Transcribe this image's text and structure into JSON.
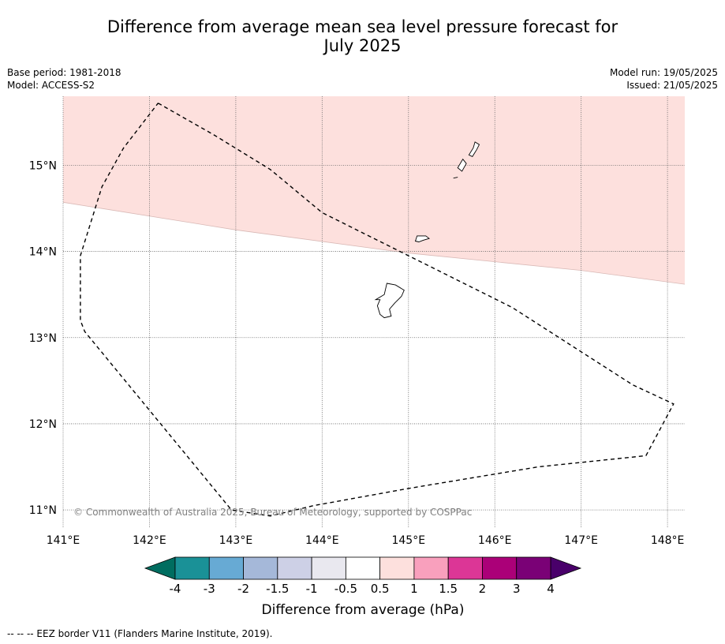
{
  "title": {
    "line1": "Difference from average mean sea level pressure forecast for",
    "line2": "July 2025"
  },
  "meta": {
    "base_period": "Base period: 1981-2018",
    "model": "Model: ACCESS-S2",
    "model_run": "Model run: 19/05/2025",
    "issued": "Issued: 21/05/2025"
  },
  "map": {
    "lon_range": [
      141.0,
      148.2
    ],
    "lat_range": [
      10.8,
      15.8
    ],
    "lon_ticks": [
      {
        "v": 141,
        "label": "141°E"
      },
      {
        "v": 142,
        "label": "142°E"
      },
      {
        "v": 143,
        "label": "143°E"
      },
      {
        "v": 144,
        "label": "144°E"
      },
      {
        "v": 145,
        "label": "145°E"
      },
      {
        "v": 146,
        "label": "146°E"
      },
      {
        "v": 147,
        "label": "147°E"
      },
      {
        "v": 148,
        "label": "148°E"
      }
    ],
    "lat_ticks": [
      {
        "v": 15,
        "label": "15°N"
      },
      {
        "v": 14,
        "label": "14°N"
      },
      {
        "v": 13,
        "label": "13°N"
      },
      {
        "v": 12,
        "label": "12°N"
      },
      {
        "v": 11,
        "label": "11°N"
      }
    ],
    "shaded_region": {
      "category": "0.5 to 1",
      "color": "#fde0dd",
      "lower_boundary": [
        [
          141.0,
          14.57
        ],
        [
          143.0,
          14.25
        ],
        [
          145.0,
          13.98
        ],
        [
          147.0,
          13.78
        ],
        [
          148.2,
          13.62
        ]
      ]
    },
    "eez_border": [
      [
        142.1,
        15.72
      ],
      [
        142.75,
        15.35
      ],
      [
        143.4,
        14.95
      ],
      [
        144.0,
        14.45
      ],
      [
        144.8,
        14.05
      ],
      [
        145.5,
        13.7
      ],
      [
        146.2,
        13.35
      ],
      [
        146.9,
        12.9
      ],
      [
        147.6,
        12.45
      ],
      [
        148.07,
        12.23
      ],
      [
        147.75,
        11.63
      ],
      [
        146.5,
        11.5
      ],
      [
        145.0,
        11.25
      ],
      [
        143.9,
        11.05
      ],
      [
        143.4,
        10.93
      ],
      [
        142.95,
        11.0
      ],
      [
        141.25,
        13.07
      ],
      [
        141.2,
        13.2
      ],
      [
        141.2,
        13.95
      ],
      [
        141.45,
        14.75
      ],
      [
        141.7,
        15.2
      ],
      [
        142.1,
        15.72
      ]
    ],
    "islands": [
      {
        "name": "Guam",
        "coords": [
          [
            144.75,
            13.63
          ],
          [
            144.85,
            13.61
          ],
          [
            144.95,
            13.55
          ],
          [
            144.92,
            13.48
          ],
          [
            144.84,
            13.4
          ],
          [
            144.78,
            13.33
          ],
          [
            144.8,
            13.25
          ],
          [
            144.72,
            13.23
          ],
          [
            144.67,
            13.27
          ],
          [
            144.64,
            13.37
          ],
          [
            144.67,
            13.44
          ],
          [
            144.62,
            13.44
          ],
          [
            144.72,
            13.5
          ],
          [
            144.75,
            13.63
          ]
        ]
      },
      {
        "name": "Rota",
        "coords": [
          [
            145.1,
            14.18
          ],
          [
            145.2,
            14.18
          ],
          [
            145.24,
            14.15
          ],
          [
            145.17,
            14.13
          ],
          [
            145.12,
            14.11
          ],
          [
            145.08,
            14.12
          ],
          [
            145.1,
            14.18
          ]
        ]
      },
      {
        "name": "Saipan",
        "coords": [
          [
            145.77,
            15.27
          ],
          [
            145.82,
            15.24
          ],
          [
            145.79,
            15.18
          ],
          [
            145.74,
            15.1
          ],
          [
            145.7,
            15.12
          ],
          [
            145.75,
            15.2
          ],
          [
            145.77,
            15.27
          ]
        ]
      },
      {
        "name": "Tinian",
        "coords": [
          [
            145.63,
            15.07
          ],
          [
            145.67,
            15.02
          ],
          [
            145.62,
            14.93
          ],
          [
            145.57,
            14.97
          ],
          [
            145.63,
            15.07
          ]
        ]
      },
      {
        "name": "Aguijan",
        "coords": [
          [
            145.52,
            14.85
          ],
          [
            145.57,
            14.86
          ]
        ]
      }
    ],
    "copyright": "© Commonwealth of Australia 2025, Bureau of Meteorology, supported by COSPPac"
  },
  "colorbar": {
    "colors": [
      "#1a9197",
      "#67aad4",
      "#a5b8d9",
      "#cdd0e6",
      "#e9e8ef",
      "#ffffff",
      "#fde0dd",
      "#f9a0bd",
      "#dc3696",
      "#ab0078",
      "#7a0176"
    ],
    "under_color": "#006d60",
    "over_color": "#49006a",
    "labels": [
      "-4",
      "-3",
      "-2",
      "-1.5",
      "-1",
      "-0.5",
      "0.5",
      "1",
      "1.5",
      "2",
      "3",
      "4"
    ],
    "label": "Difference from average (hPa)"
  },
  "legend_footer": "--  --  -- EEZ border V11 (Flanders Marine Institute, 2019)."
}
